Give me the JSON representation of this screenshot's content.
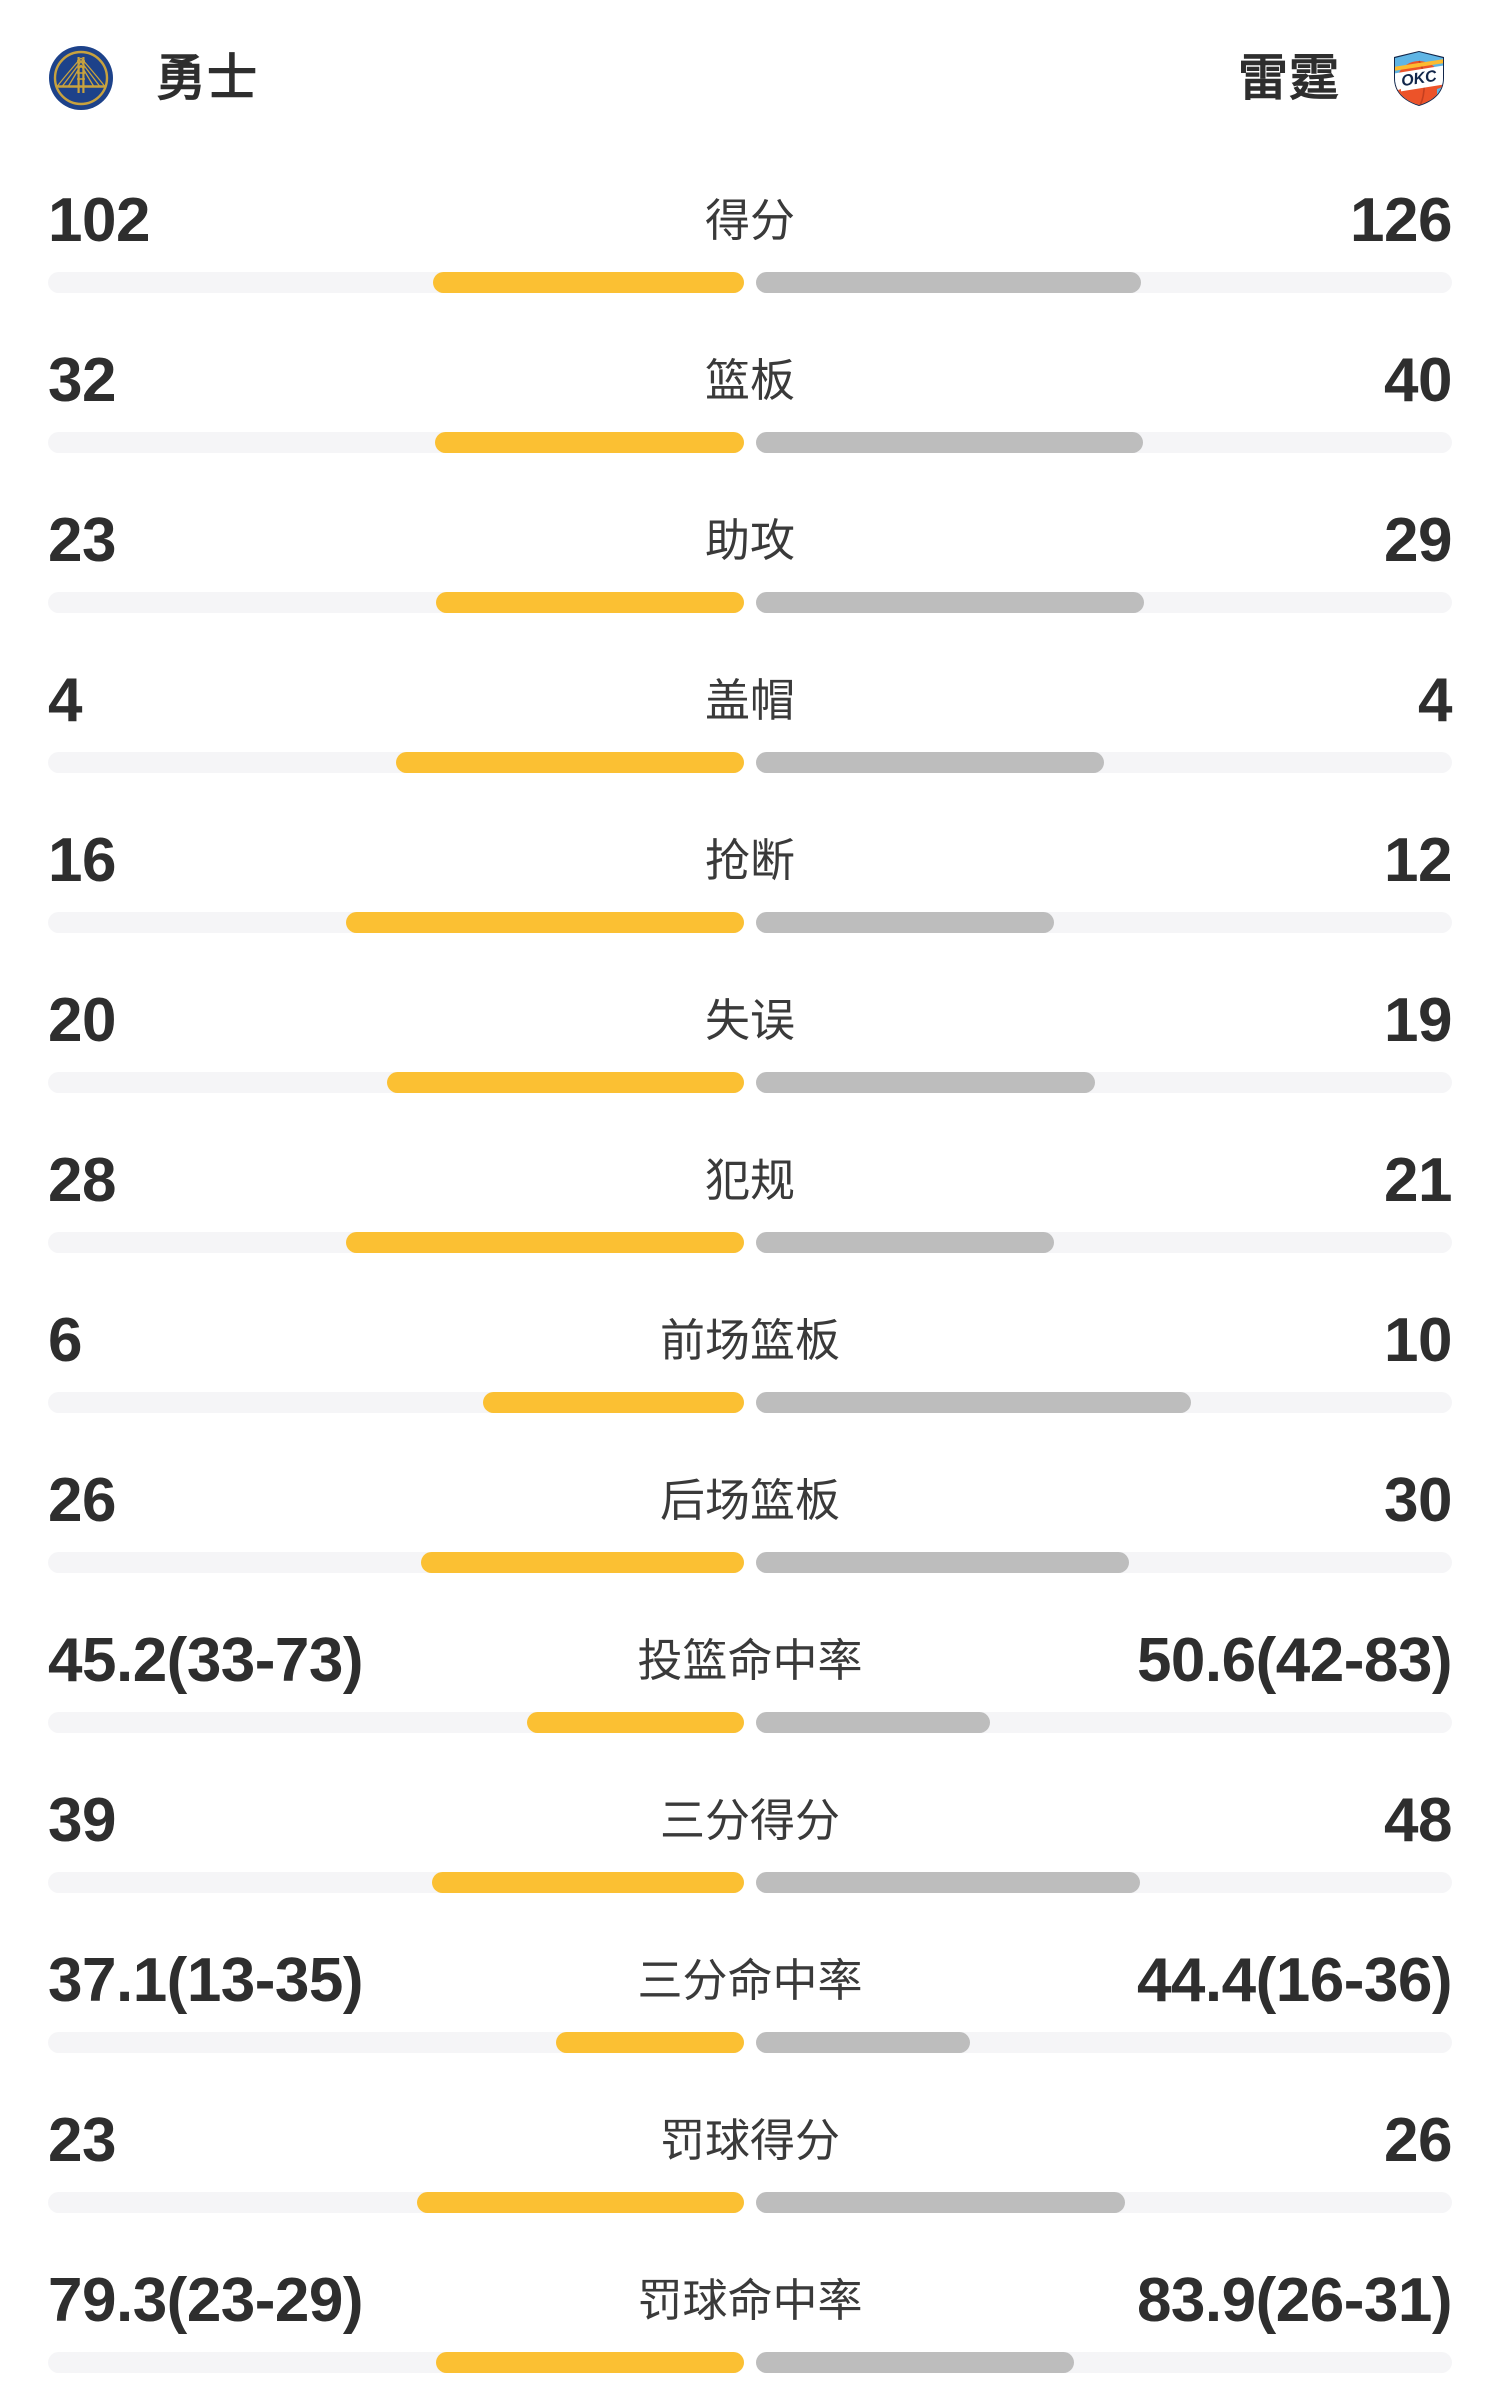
{
  "header": {
    "home_name": "勇士",
    "away_name": "雷霆",
    "home_logo": "golden-state-warriors-logo",
    "away_logo": "oklahoma-city-thunder-logo"
  },
  "colors": {
    "home_bar": "#FBC033",
    "away_bar": "#BDBDBD",
    "bar_track": "#F5F5F7",
    "value_text": "#2E2E2E",
    "label_text": "#3A3A3A"
  },
  "stats": [
    {
      "label": "得分",
      "home": "102",
      "away": "126",
      "home_value": 102,
      "away_value": 126,
      "percent": false
    },
    {
      "label": "篮板",
      "home": "32",
      "away": "40",
      "home_value": 32,
      "away_value": 40,
      "percent": false
    },
    {
      "label": "助攻",
      "home": "23",
      "away": "29",
      "home_value": 23,
      "away_value": 29,
      "percent": false
    },
    {
      "label": "盖帽",
      "home": "4",
      "away": "4",
      "home_value": 4,
      "away_value": 4,
      "percent": false
    },
    {
      "label": "抢断",
      "home": "16",
      "away": "12",
      "home_value": 16,
      "away_value": 12,
      "percent": false
    },
    {
      "label": "失误",
      "home": "20",
      "away": "19",
      "home_value": 20,
      "away_value": 19,
      "percent": false
    },
    {
      "label": "犯规",
      "home": "28",
      "away": "21",
      "home_value": 28,
      "away_value": 21,
      "percent": false
    },
    {
      "label": "前场篮板",
      "home": "6",
      "away": "10",
      "home_value": 6,
      "away_value": 10,
      "percent": false
    },
    {
      "label": "后场篮板",
      "home": "26",
      "away": "30",
      "home_value": 26,
      "away_value": 30,
      "percent": false
    },
    {
      "label": "投篮命中率",
      "home": "45.2(33-73)",
      "away": "50.6(42-83)",
      "home_value": 45.2,
      "away_value": 50.6,
      "percent": true
    },
    {
      "label": "三分得分",
      "home": "39",
      "away": "48",
      "home_value": 39,
      "away_value": 48,
      "percent": false
    },
    {
      "label": "三分命中率",
      "home": "37.1(13-35)",
      "away": "44.4(16-36)",
      "home_value": 37.1,
      "away_value": 44.4,
      "percent": true
    },
    {
      "label": "罚球得分",
      "home": "23",
      "away": "26",
      "home_value": 23,
      "away_value": 26,
      "percent": false
    },
    {
      "label": "罚球命中率",
      "home": "79.3(23-29)",
      "away": "83.9(26-31)",
      "home_value": 79.3,
      "away_value": 83.9,
      "percent": true
    }
  ],
  "chart_data": {
    "type": "bar",
    "orientation": "horizontal-paired",
    "categories": [
      "得分",
      "篮板",
      "助攻",
      "盖帽",
      "抢断",
      "失误",
      "犯规",
      "前场篮板",
      "后场篮板",
      "投篮命中率",
      "三分得分",
      "三分命中率",
      "罚球得分",
      "罚球命中率"
    ],
    "series": [
      {
        "name": "勇士",
        "color": "#FBC033",
        "values": [
          102,
          32,
          23,
          4,
          16,
          20,
          28,
          6,
          26,
          45.2,
          39,
          37.1,
          23,
          79.3
        ]
      },
      {
        "name": "雷霆",
        "color": "#BDBDBD",
        "values": [
          126,
          40,
          29,
          4,
          12,
          19,
          21,
          10,
          30,
          50.6,
          48,
          44.4,
          26,
          83.9
        ]
      }
    ],
    "value_label_format": "percent rows shown as pct(made-attempted)",
    "legend_position": "header",
    "grid": false
  }
}
